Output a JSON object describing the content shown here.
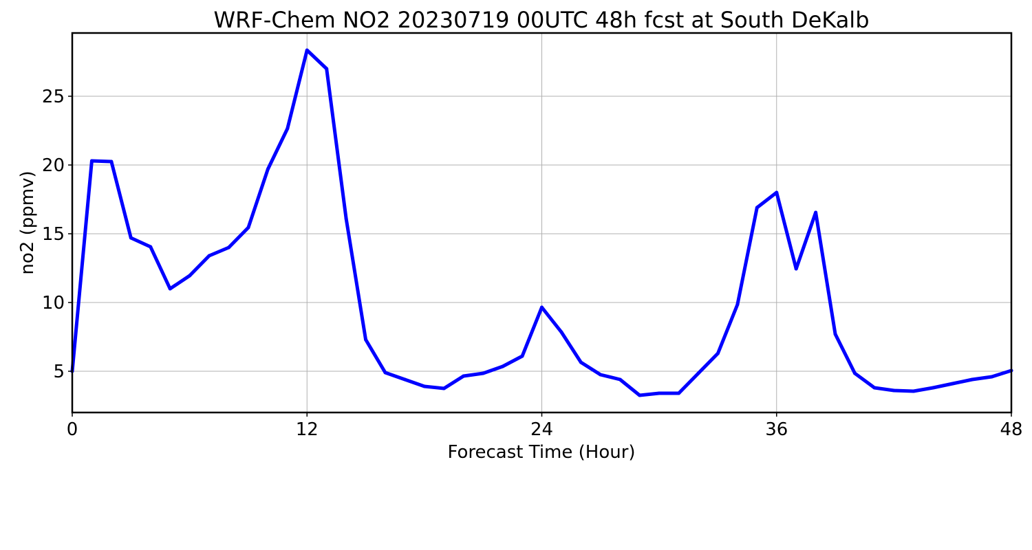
{
  "chart_data": {
    "type": "line",
    "title": "WRF-Chem NO2  20230719 00UTC 48h fcst at South DeKalb",
    "xlabel": "Forecast Time (Hour)",
    "ylabel": "no2  (ppmv)",
    "xlim": [
      0,
      48
    ],
    "ylim": [
      2,
      29.6
    ],
    "xticks": [
      0,
      12,
      24,
      36,
      48
    ],
    "yticks": [
      5,
      10,
      15,
      20,
      25
    ],
    "grid": true,
    "series_color": "#0000ff",
    "x": [
      0,
      1,
      2,
      3,
      4,
      5,
      6,
      7,
      8,
      9,
      10,
      11,
      12,
      13,
      14,
      15,
      16,
      17,
      18,
      19,
      20,
      21,
      22,
      23,
      24,
      25,
      26,
      27,
      28,
      29,
      30,
      31,
      32,
      33,
      34,
      35,
      36,
      37,
      38,
      39,
      40,
      41,
      42,
      43,
      44,
      45,
      46,
      47,
      48
    ],
    "series": [
      {
        "values": [
          5.0,
          20.3,
          20.25,
          14.7,
          14.05,
          11.0,
          11.95,
          13.4,
          14.0,
          15.45,
          19.7,
          22.65,
          28.35,
          27.0,
          16.1,
          7.3,
          4.9,
          4.4,
          3.9,
          3.75,
          4.65,
          4.85,
          5.35,
          6.1,
          9.65,
          7.85,
          5.65,
          4.75,
          4.4,
          3.25,
          3.4,
          3.4,
          4.85,
          6.3,
          9.85,
          16.9,
          18.0,
          12.45,
          16.55,
          7.7,
          4.85,
          3.8,
          3.6,
          3.55,
          3.8,
          4.1,
          4.4,
          4.6,
          5.05
        ]
      }
    ]
  }
}
